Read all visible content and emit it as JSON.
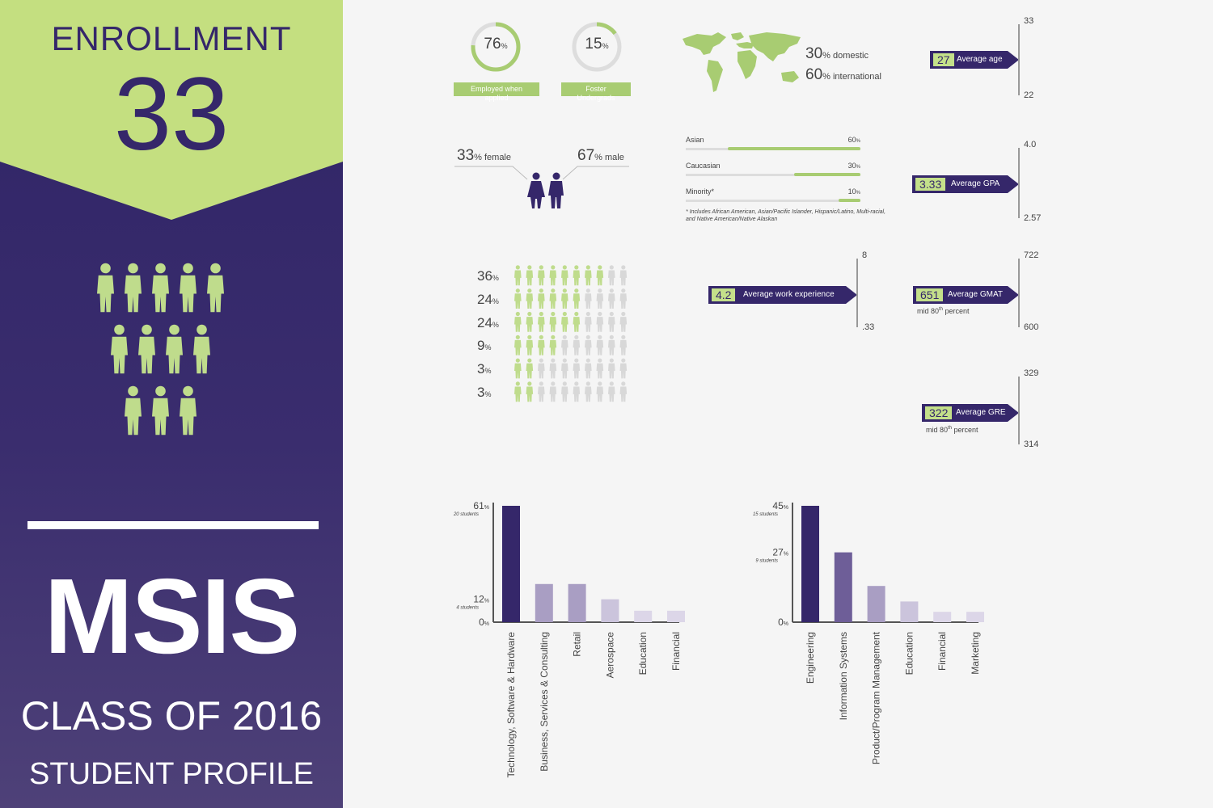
{
  "colors": {
    "green": "#c4df80",
    "purple": "#35276a",
    "bar_dark": "#35276a",
    "bar_mid": "#6e5e98",
    "bar_light": "#a99ec3",
    "bar_lighter": "#cbc4dc",
    "bar_lightest": "#dcd6e8",
    "figure_green": "#bfdc8c",
    "figure_gray": "#d8d8d8"
  },
  "left": {
    "enrollment_label": "ENROLLMENT",
    "enrollment_value": "33",
    "program": "MSIS",
    "class_of": "CLASS OF 2016",
    "profile": "STUDENT PROFILE",
    "figure_count": 12
  },
  "employed": {
    "value": "76",
    "unit": "%",
    "label": "Employed when applied",
    "fraction": 0.76
  },
  "foster": {
    "value": "15",
    "unit": "%",
    "label": "Foster Undergrads",
    "fraction": 0.15
  },
  "geo": {
    "domestic_value": "30",
    "domestic_label": "% domestic",
    "international_value": "60",
    "international_label": "% international"
  },
  "gender": {
    "female_value": "33",
    "female_label": "% female",
    "male_value": "67",
    "male_label": "% male"
  },
  "ethnicity": {
    "rows": [
      {
        "label": "Asian",
        "value": "60",
        "unit": "%",
        "fraction": 0.6
      },
      {
        "label": "Caucasian",
        "value": "30",
        "unit": "%",
        "fraction": 0.3
      },
      {
        "label": "Minority*",
        "value": "10",
        "unit": "%",
        "fraction": 0.1
      }
    ],
    "footnote_1": "* Includes African American, Asian/Pacific Islander, Hispanic/Latino, Multi-racial,",
    "footnote_2": "and Native American/Native Alaskan"
  },
  "pictogram": {
    "rows": [
      {
        "value": "36",
        "unit": "%",
        "filled": 8
      },
      {
        "value": "24",
        "unit": "%",
        "filled": 6
      },
      {
        "value": "24",
        "unit": "%",
        "filled": 6
      },
      {
        "value": "9",
        "unit": "%",
        "filled": 4
      },
      {
        "value": "3",
        "unit": "%",
        "filled": 2
      },
      {
        "value": "3",
        "unit": "%",
        "filled": 2
      }
    ],
    "total": 10
  },
  "stats": {
    "age": {
      "value": "27",
      "label": "Average age",
      "max": "33",
      "min": "22"
    },
    "gpa": {
      "value": "3.33",
      "label": "Average GPA",
      "max": "4.0",
      "min": "2.57"
    },
    "work": {
      "value": "4.2",
      "label": "Average work experience",
      "max": "8",
      "min": ".33"
    },
    "gmat": {
      "value": "651",
      "label": "Average GMAT",
      "max": "722",
      "min": "600",
      "note": "mid 80",
      "note_sup": "th",
      "note_tail": " percent"
    },
    "gre": {
      "value": "322",
      "label": "Average GRE",
      "max": "329",
      "min": "314",
      "note": "mid 80",
      "note_sup": "th",
      "note_tail": " percent"
    }
  },
  "chart_data": [
    {
      "type": "bar",
      "categories": [
        "Technology, Software & Hardware",
        "Business, Services & Consulting",
        "Retail",
        "Aerospace",
        "Education",
        "Financial"
      ],
      "values": [
        61,
        20,
        20,
        12,
        6,
        6
      ],
      "ylim": [
        0,
        61
      ],
      "y_ticks": [
        {
          "value": 61,
          "label": "61",
          "unit": "%",
          "sub": "20 students"
        },
        {
          "value": 12,
          "label": "12",
          "unit": "%",
          "sub": "4 students"
        },
        {
          "value": 0,
          "label": "0",
          "unit": "%",
          "sub": ""
        }
      ]
    },
    {
      "type": "bar",
      "categories": [
        "Engineering",
        "Information Systems",
        "Product/Program Management",
        "Education",
        "Financial",
        "Marketing"
      ],
      "values": [
        45,
        27,
        14,
        8,
        4,
        4
      ],
      "ylim": [
        0,
        45
      ],
      "y_ticks": [
        {
          "value": 45,
          "label": "45",
          "unit": "%",
          "sub": "15 students"
        },
        {
          "value": 27,
          "label": "27",
          "unit": "%",
          "sub": "9 students"
        },
        {
          "value": 0,
          "label": "0",
          "unit": "%",
          "sub": ""
        }
      ]
    }
  ]
}
